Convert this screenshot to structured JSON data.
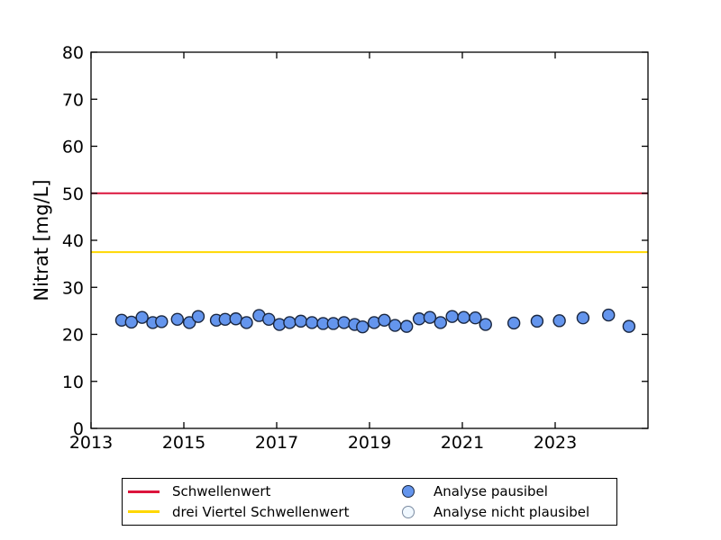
{
  "figure": {
    "background": "#ffffff",
    "axes_frame_color": "#000000",
    "tick_label_color": "#000000"
  },
  "chart_data": {
    "type": "scatter",
    "title": "",
    "xlabel": "",
    "ylabel": "Nitrat [mg/L]",
    "xlim": [
      2013,
      2025
    ],
    "ylim": [
      0,
      80
    ],
    "xtick_values": [
      2013,
      2015,
      2017,
      2019,
      2021,
      2023
    ],
    "xtick_labels": [
      "2013",
      "2015",
      "2017",
      "2019",
      "2021",
      "2023"
    ],
    "ytick_values": [
      0,
      10,
      20,
      30,
      40,
      50,
      60,
      70,
      80
    ],
    "ytick_labels": [
      "0",
      "10",
      "20",
      "30",
      "40",
      "50",
      "60",
      "70",
      "80"
    ],
    "grid": false,
    "legend_position": "below-axes",
    "reference_lines": [
      {
        "name": "Schwellenwert",
        "value": 50,
        "color": "#dc143c",
        "width": 2
      },
      {
        "name": "drei Viertel Schwellenwert",
        "value": 37.5,
        "color": "#ffd700",
        "width": 2
      }
    ],
    "series": [
      {
        "name": "Analyse pausibel",
        "marker": "circle",
        "marker_fill": "#6495ed",
        "marker_edge": "#1a2740",
        "marker_radius": 6.5,
        "points": [
          [
            2013.66,
            23.0
          ],
          [
            2013.87,
            22.6
          ],
          [
            2014.1,
            23.6
          ],
          [
            2014.33,
            22.5
          ],
          [
            2014.52,
            22.7
          ],
          [
            2014.86,
            23.2
          ],
          [
            2015.12,
            22.5
          ],
          [
            2015.31,
            23.8
          ],
          [
            2015.7,
            23.0
          ],
          [
            2015.89,
            23.2
          ],
          [
            2016.12,
            23.3
          ],
          [
            2016.35,
            22.5
          ],
          [
            2016.62,
            24.0
          ],
          [
            2016.83,
            23.2
          ],
          [
            2017.06,
            22.1
          ],
          [
            2017.28,
            22.5
          ],
          [
            2017.52,
            22.8
          ],
          [
            2017.76,
            22.5
          ],
          [
            2018.0,
            22.3
          ],
          [
            2018.22,
            22.3
          ],
          [
            2018.45,
            22.5
          ],
          [
            2018.68,
            22.1
          ],
          [
            2018.85,
            21.6
          ],
          [
            2019.1,
            22.5
          ],
          [
            2019.32,
            23.0
          ],
          [
            2019.55,
            21.9
          ],
          [
            2019.8,
            21.7
          ],
          [
            2020.07,
            23.3
          ],
          [
            2020.3,
            23.6
          ],
          [
            2020.53,
            22.5
          ],
          [
            2020.78,
            23.8
          ],
          [
            2021.03,
            23.6
          ],
          [
            2021.28,
            23.5
          ],
          [
            2021.5,
            22.1
          ],
          [
            2022.11,
            22.4
          ],
          [
            2022.61,
            22.8
          ],
          [
            2023.09,
            22.9
          ],
          [
            2023.6,
            23.5
          ],
          [
            2024.15,
            24.1
          ],
          [
            2024.59,
            21.7
          ]
        ]
      },
      {
        "name": "Analyse nicht plausibel",
        "marker": "circle",
        "marker_fill": "#f0f8ff",
        "marker_edge": "#7a8aa0",
        "marker_radius": 6.5,
        "points": []
      }
    ]
  },
  "legend": {
    "items": [
      {
        "label": "Schwellenwert",
        "swatch": "line",
        "color": "#dc143c"
      },
      {
        "label": "drei Viertel Schwellenwert",
        "swatch": "line",
        "color": "#ffd700"
      },
      {
        "label": "Analyse pausibel",
        "swatch": "circle-filled",
        "fill": "#6495ed",
        "edge": "#1a2740"
      },
      {
        "label": "Analyse nicht plausibel",
        "swatch": "circle-open",
        "fill": "#f0f8ff",
        "edge": "#7a8aa0"
      }
    ]
  }
}
